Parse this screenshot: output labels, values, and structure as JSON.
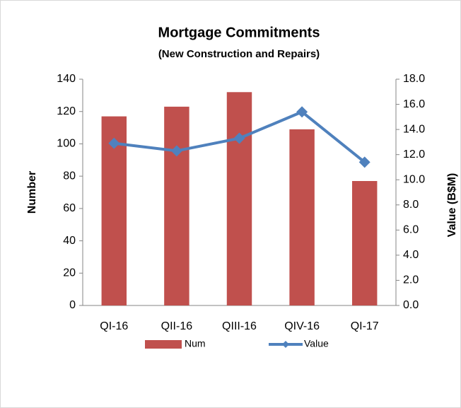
{
  "chart_data": {
    "type": "bar_line",
    "title": "Mortgage Commitments",
    "subtitle": "(New Construction and Repairs)",
    "categories": [
      "QI-16",
      "QII-16",
      "QIII-16",
      "QIV-16",
      "QI-17"
    ],
    "ylabel": "Number",
    "y2label": "Value (B$M)",
    "series": [
      {
        "name": "Num",
        "type": "bar",
        "color": "#c0504d",
        "axis": "y",
        "values": [
          117,
          123,
          132,
          109,
          77
        ]
      },
      {
        "name": "Value",
        "type": "line",
        "color": "#4f81bd",
        "axis": "y2",
        "values": [
          12.9,
          12.3,
          13.3,
          15.4,
          11.4
        ]
      }
    ],
    "ylim": [
      0,
      140
    ],
    "yticks": [
      0,
      20,
      40,
      60,
      80,
      100,
      120,
      140
    ],
    "y2lim": [
      0,
      18
    ],
    "y2ticks": [
      {
        "value": 0,
        "label": "0.0"
      },
      {
        "value": 2,
        "label": "2.0"
      },
      {
        "value": 4,
        "label": "4.0"
      },
      {
        "value": 6,
        "label": "6.0"
      },
      {
        "value": 8,
        "label": "8.0"
      },
      {
        "value": 10,
        "label": "10.0"
      },
      {
        "value": 12,
        "label": "12.0"
      },
      {
        "value": 14,
        "label": "14.0"
      },
      {
        "value": 16,
        "label": "16.0"
      },
      {
        "value": 18,
        "label": "18.0"
      }
    ],
    "legend": "bottom"
  }
}
